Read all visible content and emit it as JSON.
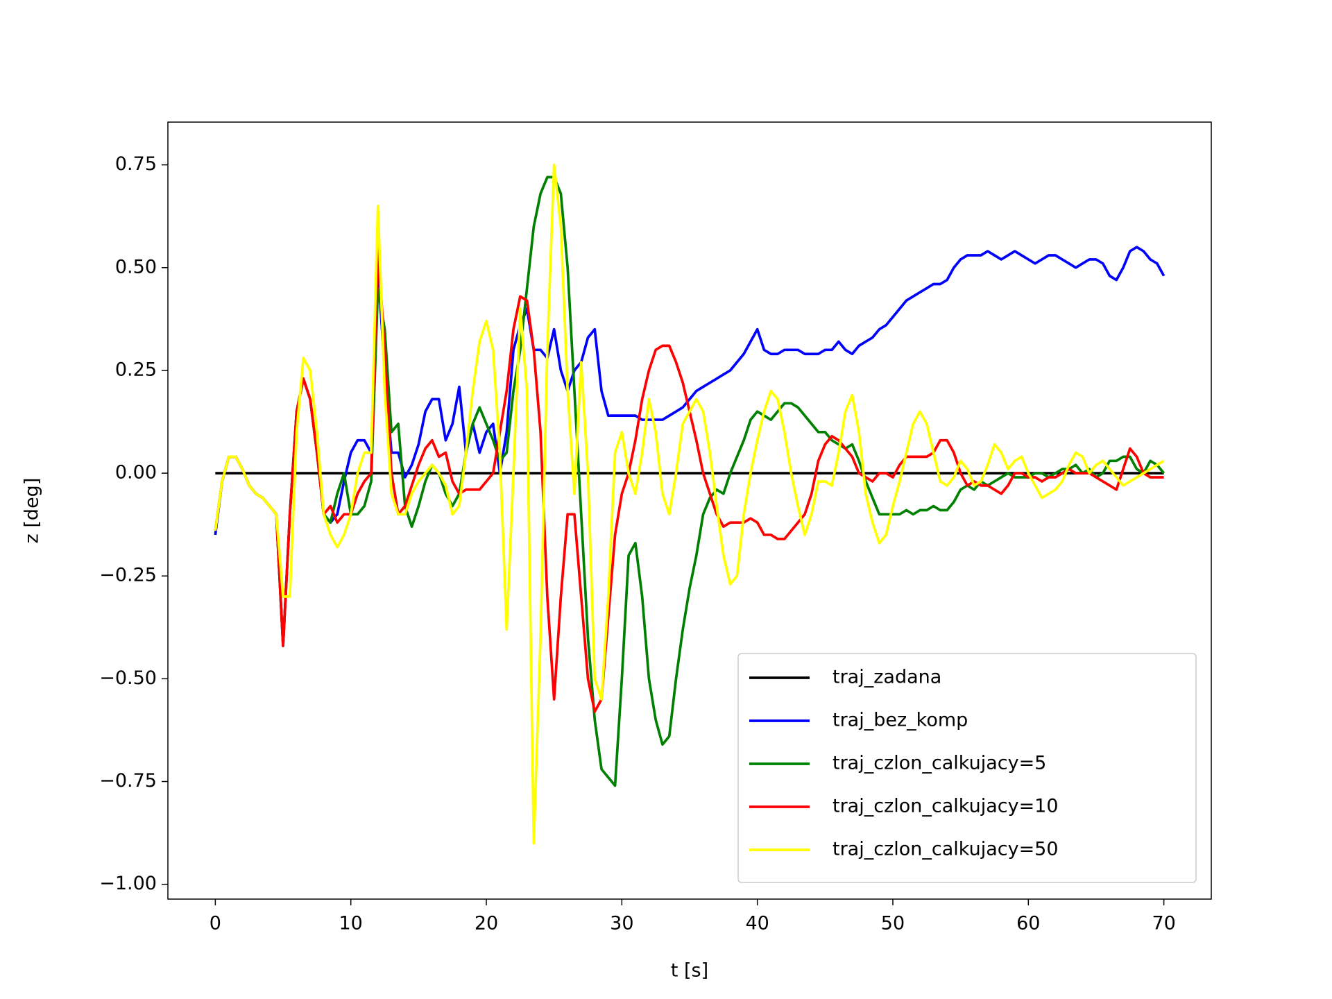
{
  "chart_data": {
    "type": "line",
    "xlabel": "t [s]",
    "ylabel": "z [deg]",
    "x": [
      0,
      0.5,
      1,
      1.5,
      2,
      2.5,
      3,
      3.5,
      4,
      4.5,
      5,
      5.5,
      6,
      6.5,
      7,
      7.5,
      8,
      8.5,
      9,
      9.5,
      10,
      10.5,
      11,
      11.5,
      12,
      12.5,
      13,
      13.5,
      14,
      14.5,
      15,
      15.5,
      16,
      16.5,
      17,
      17.5,
      18,
      18.5,
      19,
      19.5,
      20,
      20.5,
      21,
      21.5,
      22,
      22.5,
      23,
      23.5,
      24,
      24.5,
      25,
      25.5,
      26,
      26.5,
      27,
      27.5,
      28,
      28.5,
      29,
      29.5,
      30,
      30.5,
      31,
      31.5,
      32,
      32.5,
      33,
      33.5,
      34,
      34.5,
      35,
      35.5,
      36,
      36.5,
      37,
      37.5,
      38,
      38.5,
      39,
      39.5,
      40,
      40.5,
      41,
      41.5,
      42,
      42.5,
      43,
      43.5,
      44,
      44.5,
      45,
      45.5,
      46,
      46.5,
      47,
      47.5,
      48,
      48.5,
      49,
      49.5,
      50,
      50.5,
      51,
      51.5,
      52,
      52.5,
      53,
      53.5,
      54,
      54.5,
      55,
      55.5,
      56,
      56.5,
      57,
      57.5,
      58,
      58.5,
      59,
      59.5,
      60,
      60.5,
      61,
      61.5,
      62,
      62.5,
      63,
      63.5,
      64,
      64.5,
      65,
      65.5,
      66,
      66.5,
      67,
      67.5,
      68,
      68.5,
      69,
      69.5,
      70
    ],
    "series": [
      {
        "name": "traj_zadana",
        "color": "#000000",
        "values": [
          0,
          0,
          0,
          0,
          0,
          0,
          0,
          0,
          0,
          0,
          0,
          0,
          0,
          0,
          0,
          0,
          0,
          0,
          0,
          0,
          0,
          0,
          0,
          0,
          0,
          0,
          0,
          0,
          0,
          0,
          0,
          0,
          0,
          0,
          0,
          0,
          0,
          0,
          0,
          0,
          0,
          0,
          0,
          0,
          0,
          0,
          0,
          0,
          0,
          0,
          0,
          0,
          0,
          0,
          0,
          0,
          0,
          0,
          0,
          0,
          0,
          0,
          0,
          0,
          0,
          0,
          0,
          0,
          0,
          0,
          0,
          0,
          0,
          0,
          0,
          0,
          0,
          0,
          0,
          0,
          0,
          0,
          0,
          0,
          0,
          0,
          0,
          0,
          0,
          0,
          0,
          0,
          0,
          0,
          0,
          0,
          0,
          0,
          0,
          0,
          0,
          0,
          0,
          0,
          0,
          0,
          0,
          0,
          0,
          0,
          0,
          0,
          0,
          0,
          0,
          0,
          0,
          0,
          0,
          0,
          0,
          0,
          0,
          0,
          0,
          0,
          0,
          0,
          0,
          0,
          0,
          0,
          0,
          0,
          0,
          0,
          0,
          0,
          0,
          0,
          0
        ]
      },
      {
        "name": "traj_bez_komp",
        "color": "#0000ff",
        "values": [
          -0.15,
          -0.02,
          0.04,
          0.04,
          0.01,
          -0.03,
          -0.05,
          -0.06,
          -0.08,
          -0.1,
          -0.42,
          -0.1,
          0.15,
          0.23,
          0.18,
          0.05,
          -0.1,
          -0.12,
          -0.1,
          -0.02,
          0.05,
          0.08,
          0.08,
          0.05,
          0.5,
          0.25,
          0.05,
          0.05,
          -0.01,
          0.02,
          0.07,
          0.15,
          0.18,
          0.18,
          0.08,
          0.12,
          0.21,
          0.05,
          0.12,
          0.05,
          0.1,
          0.12,
          0.0,
          0.1,
          0.3,
          0.36,
          0.4,
          0.3,
          0.3,
          0.28,
          0.35,
          0.25,
          0.2,
          0.25,
          0.27,
          0.33,
          0.35,
          0.2,
          0.14,
          0.14,
          0.14,
          0.14,
          0.14,
          0.13,
          0.13,
          0.13,
          0.13,
          0.14,
          0.15,
          0.16,
          0.18,
          0.2,
          0.21,
          0.22,
          0.23,
          0.24,
          0.25,
          0.27,
          0.29,
          0.32,
          0.35,
          0.3,
          0.29,
          0.29,
          0.3,
          0.3,
          0.3,
          0.29,
          0.29,
          0.29,
          0.3,
          0.3,
          0.32,
          0.3,
          0.29,
          0.31,
          0.32,
          0.33,
          0.35,
          0.36,
          0.38,
          0.4,
          0.42,
          0.43,
          0.44,
          0.45,
          0.46,
          0.46,
          0.47,
          0.5,
          0.52,
          0.53,
          0.53,
          0.53,
          0.54,
          0.53,
          0.52,
          0.53,
          0.54,
          0.53,
          0.52,
          0.51,
          0.52,
          0.53,
          0.53,
          0.52,
          0.51,
          0.5,
          0.51,
          0.52,
          0.52,
          0.51,
          0.48,
          0.47,
          0.5,
          0.54,
          0.55,
          0.54,
          0.52,
          0.51,
          0.48
        ]
      },
      {
        "name": "traj_czlon_calkujacy=5",
        "color": "#008000",
        "values": [
          -0.14,
          -0.02,
          0.04,
          0.04,
          0.01,
          -0.03,
          -0.05,
          -0.06,
          -0.08,
          -0.1,
          -0.42,
          -0.1,
          0.15,
          0.23,
          0.18,
          0.05,
          -0.1,
          -0.12,
          -0.05,
          0.0,
          -0.1,
          -0.1,
          -0.08,
          -0.02,
          0.45,
          0.35,
          0.1,
          0.12,
          -0.08,
          -0.13,
          -0.08,
          -0.02,
          0.02,
          0.0,
          -0.05,
          -0.08,
          -0.05,
          0.05,
          0.12,
          0.16,
          0.12,
          0.08,
          0.03,
          0.05,
          0.2,
          0.3,
          0.45,
          0.6,
          0.68,
          0.72,
          0.72,
          0.68,
          0.5,
          0.2,
          -0.1,
          -0.4,
          -0.6,
          -0.72,
          -0.74,
          -0.76,
          -0.5,
          -0.2,
          -0.17,
          -0.3,
          -0.5,
          -0.6,
          -0.66,
          -0.64,
          -0.5,
          -0.38,
          -0.28,
          -0.2,
          -0.1,
          -0.06,
          -0.04,
          -0.05,
          0.0,
          0.04,
          0.08,
          0.13,
          0.15,
          0.14,
          0.13,
          0.15,
          0.17,
          0.17,
          0.16,
          0.14,
          0.12,
          0.1,
          0.1,
          0.08,
          0.07,
          0.06,
          0.07,
          0.03,
          -0.02,
          -0.06,
          -0.1,
          -0.1,
          -0.1,
          -0.1,
          -0.09,
          -0.1,
          -0.09,
          -0.09,
          -0.08,
          -0.09,
          -0.09,
          -0.07,
          -0.04,
          -0.03,
          -0.04,
          -0.02,
          -0.03,
          -0.02,
          -0.01,
          0.0,
          -0.01,
          -0.01,
          -0.01,
          0.0,
          0.0,
          -0.01,
          0.0,
          0.01,
          0.01,
          0.02,
          0.0,
          0.01,
          -0.01,
          0.0,
          0.03,
          0.03,
          0.04,
          0.04,
          0.01,
          0.0,
          0.03,
          0.02,
          0.0
        ]
      },
      {
        "name": "traj_czlon_calkujacy=10",
        "color": "#ff0000",
        "values": [
          -0.14,
          -0.02,
          0.04,
          0.04,
          0.01,
          -0.03,
          -0.05,
          -0.06,
          -0.08,
          -0.1,
          -0.42,
          -0.1,
          0.15,
          0.23,
          0.18,
          0.05,
          -0.1,
          -0.08,
          -0.12,
          -0.1,
          -0.1,
          -0.05,
          -0.02,
          0.0,
          0.55,
          0.3,
          0.0,
          -0.1,
          -0.08,
          -0.03,
          0.02,
          0.06,
          0.08,
          0.04,
          0.05,
          -0.02,
          -0.05,
          -0.04,
          -0.04,
          -0.04,
          -0.02,
          0.0,
          0.1,
          0.2,
          0.35,
          0.43,
          0.42,
          0.3,
          0.1,
          -0.3,
          -0.55,
          -0.3,
          -0.1,
          -0.1,
          -0.3,
          -0.5,
          -0.58,
          -0.55,
          -0.35,
          -0.15,
          -0.05,
          0.0,
          0.08,
          0.18,
          0.25,
          0.3,
          0.31,
          0.31,
          0.27,
          0.22,
          0.15,
          0.08,
          0.0,
          -0.05,
          -0.1,
          -0.13,
          -0.12,
          -0.12,
          -0.12,
          -0.11,
          -0.12,
          -0.15,
          -0.15,
          -0.16,
          -0.16,
          -0.14,
          -0.12,
          -0.1,
          -0.05,
          0.03,
          0.07,
          0.09,
          0.08,
          0.06,
          0.04,
          0.0,
          -0.01,
          -0.02,
          0.0,
          0.0,
          -0.01,
          0.02,
          0.04,
          0.04,
          0.04,
          0.04,
          0.05,
          0.08,
          0.08,
          0.05,
          0.0,
          -0.03,
          -0.02,
          -0.03,
          -0.03,
          -0.04,
          -0.05,
          -0.03,
          0.0,
          0.0,
          -0.01,
          -0.01,
          -0.02,
          -0.01,
          -0.01,
          0.0,
          0.01,
          0.0,
          0.0,
          0.0,
          -0.01,
          -0.02,
          -0.03,
          -0.04,
          0.01,
          0.06,
          0.04,
          0.0,
          -0.01,
          -0.01,
          -0.01
        ]
      },
      {
        "name": "traj_czlon_calkujacy=50",
        "color": "#ffff00",
        "values": [
          -0.14,
          -0.02,
          0.04,
          0.04,
          0.01,
          -0.03,
          -0.05,
          -0.06,
          -0.08,
          -0.1,
          -0.3,
          -0.3,
          0.1,
          0.28,
          0.25,
          0.1,
          -0.1,
          -0.15,
          -0.18,
          -0.15,
          -0.1,
          0.0,
          0.05,
          0.05,
          0.65,
          0.2,
          -0.05,
          -0.1,
          -0.1,
          -0.05,
          -0.02,
          0.0,
          0.02,
          0.0,
          -0.03,
          -0.1,
          -0.08,
          0.05,
          0.2,
          0.32,
          0.37,
          0.3,
          0.05,
          -0.38,
          0.0,
          0.4,
          0.2,
          -0.9,
          -0.4,
          0.3,
          0.75,
          0.6,
          0.2,
          -0.05,
          0.27,
          0.0,
          -0.5,
          -0.55,
          -0.3,
          0.05,
          0.1,
          0.0,
          -0.05,
          0.05,
          0.18,
          0.1,
          -0.05,
          -0.1,
          0.0,
          0.12,
          0.15,
          0.18,
          0.15,
          0.05,
          -0.08,
          -0.2,
          -0.27,
          -0.25,
          -0.1,
          0.0,
          0.08,
          0.15,
          0.2,
          0.18,
          0.1,
          0.0,
          -0.08,
          -0.15,
          -0.1,
          -0.02,
          -0.02,
          -0.03,
          0.05,
          0.15,
          0.19,
          0.1,
          -0.05,
          -0.12,
          -0.17,
          -0.15,
          -0.08,
          -0.02,
          0.05,
          0.12,
          0.15,
          0.12,
          0.05,
          -0.02,
          -0.03,
          -0.01,
          0.03,
          0.01,
          -0.03,
          -0.02,
          0.02,
          0.07,
          0.05,
          0.01,
          0.03,
          0.04,
          0.0,
          -0.03,
          -0.06,
          -0.05,
          -0.04,
          -0.02,
          0.02,
          0.05,
          0.04,
          0.0,
          0.02,
          0.03,
          0.01,
          -0.01,
          -0.03,
          -0.02,
          -0.01,
          0.0,
          0.01,
          0.02,
          0.03
        ]
      }
    ],
    "xlim": [
      -3.5,
      73.5
    ],
    "ylim": [
      -1.036,
      0.854
    ],
    "xticks": [
      0,
      10,
      20,
      30,
      40,
      50,
      60,
      70
    ],
    "yticks": [
      {
        "value": -1,
        "label": "−1.00"
      },
      {
        "value": -0.75,
        "label": "−0.75"
      },
      {
        "value": -0.5,
        "label": "−0.50"
      },
      {
        "value": -0.25,
        "label": "−0.25"
      },
      {
        "value": 0,
        "label": "0.00"
      },
      0.25,
      {
        "value": 0.5,
        "label": "0.50"
      },
      0.75
    ],
    "legend": "lower right",
    "grid": false
  }
}
